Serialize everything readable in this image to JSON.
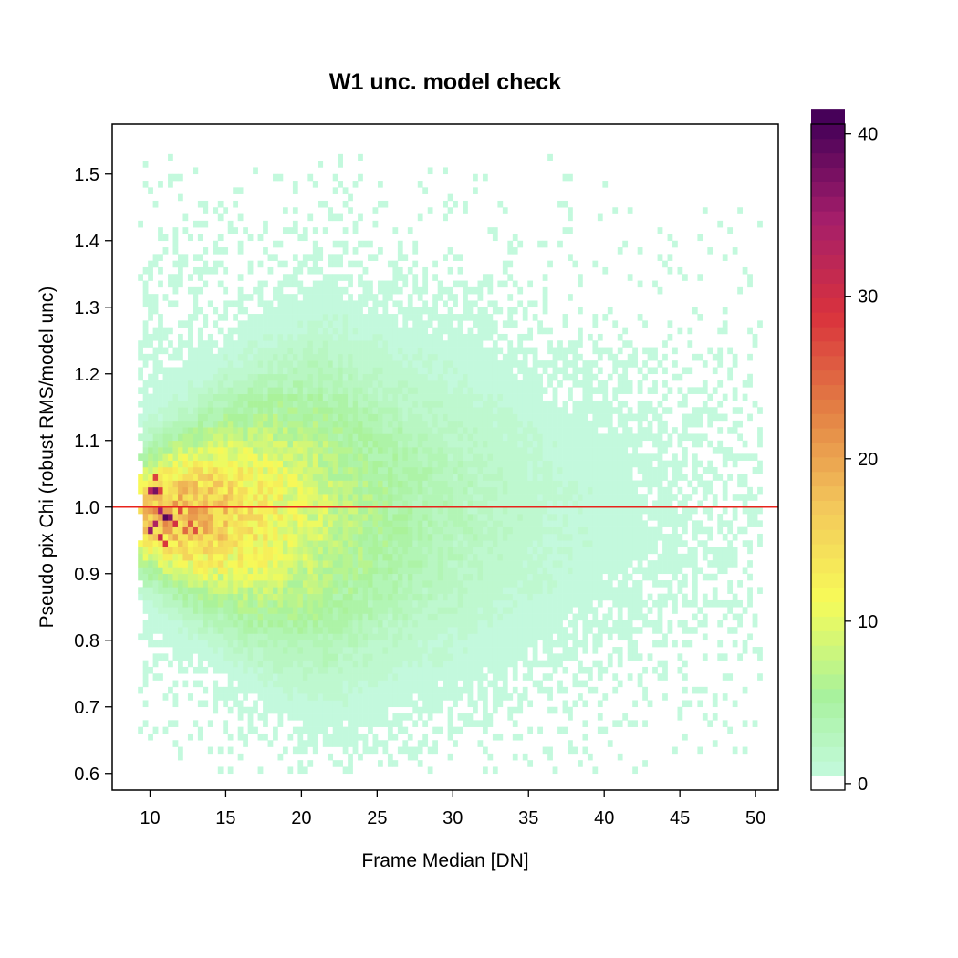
{
  "chart_data": {
    "type": "heatmap",
    "title": "W1 unc. model check",
    "xlabel": "Frame Median [DN]",
    "ylabel": "Pseudo pix Chi (robust RMS/model unc)",
    "xlim": [
      7.5,
      51.5
    ],
    "ylim": [
      0.575,
      1.575
    ],
    "xticks": [
      10,
      15,
      20,
      25,
      30,
      35,
      40,
      45,
      50
    ],
    "yticks": [
      0.6,
      0.7,
      0.8,
      0.9,
      1.0,
      1.1,
      1.2,
      1.3,
      1.4,
      1.5
    ],
    "ytick_labels": [
      "0.6",
      "0.7",
      "0.8",
      "0.9",
      "1.0",
      "1.1",
      "1.2",
      "1.3",
      "1.4",
      "1.5"
    ],
    "reference_line": {
      "y": 1.0,
      "color": "#e8231c"
    },
    "bin_width": {
      "x": 0.33,
      "y": 0.01
    },
    "colorbar": {
      "range": [
        0,
        41
      ],
      "ticks": [
        0,
        10,
        20,
        30,
        40
      ],
      "colors": [
        "#ffffff",
        "#c9fbea",
        "#a8f29c",
        "#f7fb58",
        "#f3c65b",
        "#e38044",
        "#d9323d",
        "#a51e6a",
        "#470159"
      ]
    },
    "density_model": {
      "description_of_counts": "counts per bin; peak near x=10.5-12, y=0.95-1.0",
      "core_peak": {
        "x": 11.0,
        "y": 0.975,
        "count": 40
      },
      "hot_cells": [
        {
          "x": 10.0,
          "y": 1.02,
          "count": 33
        },
        {
          "x": 10.3,
          "y": 1.02,
          "count": 38
        },
        {
          "x": 10.7,
          "y": 1.02,
          "count": 28
        },
        {
          "x": 11.0,
          "y": 0.98,
          "count": 40
        },
        {
          "x": 11.3,
          "y": 0.98,
          "count": 37
        },
        {
          "x": 10.3,
          "y": 0.97,
          "count": 34
        },
        {
          "x": 10.0,
          "y": 0.96,
          "count": 36
        },
        {
          "x": 10.7,
          "y": 0.95,
          "count": 31
        },
        {
          "x": 11.0,
          "y": 0.94,
          "count": 29
        },
        {
          "x": 10.7,
          "y": 0.99,
          "count": 35
        },
        {
          "x": 12.0,
          "y": 0.99,
          "count": 27
        },
        {
          "x": 12.7,
          "y": 0.97,
          "count": 26
        },
        {
          "x": 11.7,
          "y": 0.97,
          "count": 30
        },
        {
          "x": 12.3,
          "y": 0.96,
          "count": 25
        },
        {
          "x": 13.0,
          "y": 0.96,
          "count": 27
        },
        {
          "x": 10.3,
          "y": 1.04,
          "count": 28
        }
      ]
    }
  }
}
